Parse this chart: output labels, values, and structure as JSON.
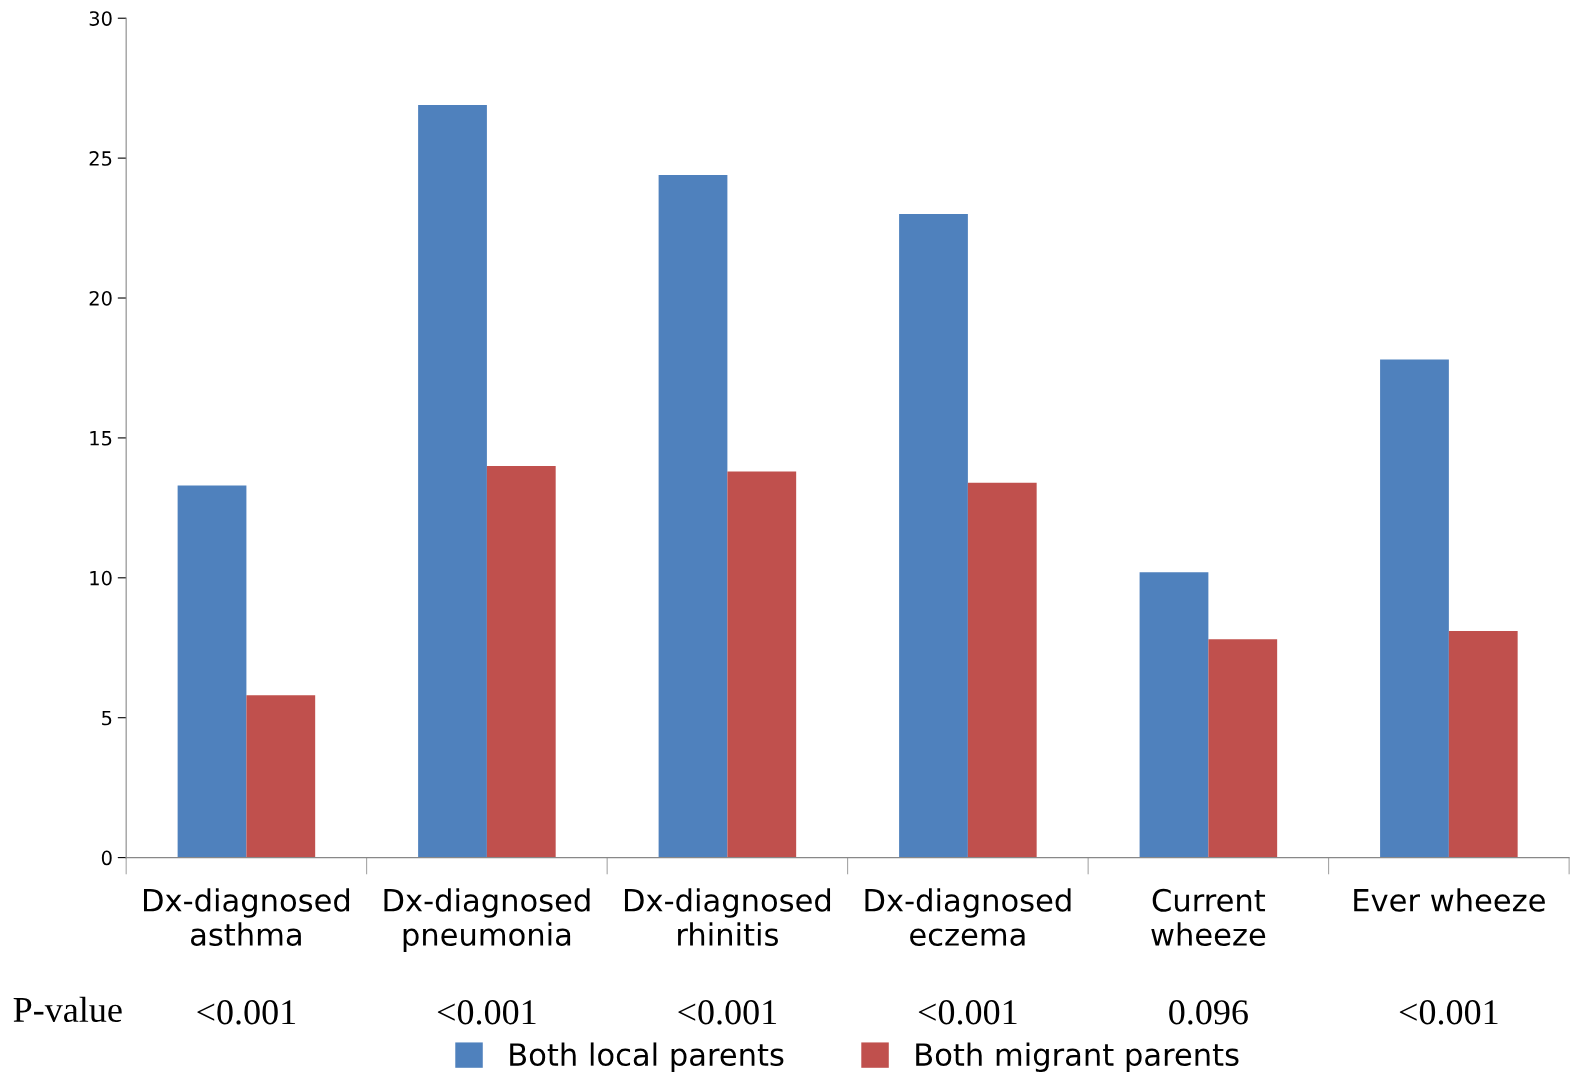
{
  "chart_data": {
    "type": "bar",
    "categories": [
      "Dx-diagnosed\nasthma",
      "Dx-diagnosed\npneumonia",
      "Dx-diagnosed\nrhinitis",
      "Dx-diagnosed\neczema",
      "Current\nwheeze",
      "Ever wheeze\n"
    ],
    "series": [
      {
        "name": "Both local parents",
        "color": "#4f81bd",
        "values": [
          13.3,
          26.9,
          24.4,
          23.0,
          10.2,
          17.8
        ]
      },
      {
        "name": "Both migrant parents",
        "color": "#c0504d",
        "values": [
          5.8,
          14.0,
          13.8,
          13.4,
          7.8,
          8.1
        ]
      }
    ],
    "ylim": [
      0,
      30
    ],
    "yticks": [
      0,
      5,
      10,
      15,
      20,
      25,
      30
    ],
    "annotations": [
      "P-value",
      "<0.001",
      "<0.001",
      "<0.001",
      "<0.001",
      "0.096",
      "<0.001"
    ],
    "grid": false,
    "legend": "bottom"
  }
}
